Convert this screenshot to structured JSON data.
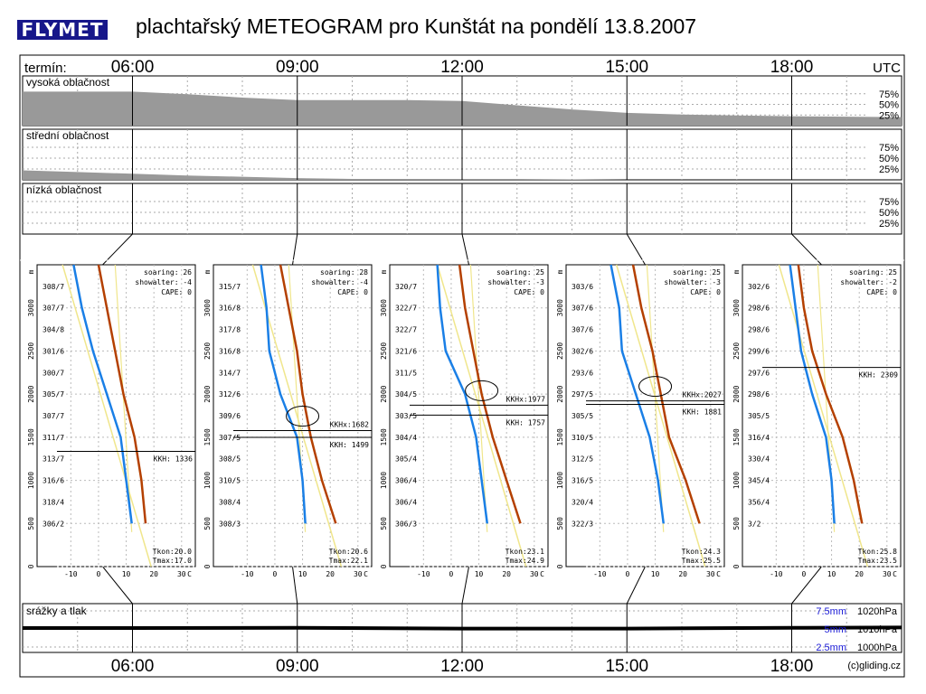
{
  "header": {
    "logo_text": "FLYMET",
    "title": "plachtařský METEOGRAM pro Kunštát na pondělí 13.8.2007"
  },
  "time_axis": {
    "label": "termín:",
    "unit": "UTC",
    "ticks": [
      "06:00",
      "09:00",
      "12:00",
      "15:00",
      "18:00"
    ]
  },
  "cloud_panels": [
    {
      "label": "vysoká oblačnost",
      "percent_ticks": [
        "75%",
        "50%",
        "25%"
      ]
    },
    {
      "label": "střední oblačnost",
      "percent_ticks": [
        "75%",
        "50%",
        "25%"
      ]
    },
    {
      "label": "nízká oblačnost",
      "percent_ticks": [
        "75%",
        "50%",
        "25%"
      ]
    }
  ],
  "sounding_axis": {
    "x_ticks": [
      "-10",
      "0",
      "10",
      "20",
      "30"
    ],
    "x_unit": "C",
    "y_ticks": [
      "0",
      "500",
      "1000",
      "1500",
      "2000",
      "2500",
      "3000"
    ],
    "y_unit": "m"
  },
  "soundings": [
    {
      "time": "06:00",
      "soaring": "soaring: 26",
      "showalter": "showalter: -4",
      "cape": "CAPE: 0",
      "wind_labels": [
        "308/7",
        "307/7",
        "304/8",
        "301/6",
        "300/7",
        "305/7",
        "307/7",
        "311/7",
        "313/7",
        "316/6",
        "318/4",
        "306/2"
      ],
      "kkh": [
        "KKH: 1336"
      ],
      "tkon": "Tkon:20.0",
      "tmax": "Tmax:17.0"
    },
    {
      "time": "09:00",
      "soaring": "soaring: 28",
      "showalter": "showalter: -4",
      "cape": "CAPE: 0",
      "wind_labels": [
        "315/7",
        "316/8",
        "317/8",
        "316/8",
        "314/7",
        "312/6",
        "309/6",
        "307/5",
        "308/5",
        "310/5",
        "308/4",
        "308/3"
      ],
      "kkh": [
        "KKHx:1682",
        "KKH: 1499"
      ],
      "tkon": "Tkon:20.6",
      "tmax": "Tmax:22.1"
    },
    {
      "time": "12:00",
      "soaring": "soaring: 25",
      "showalter": "showalter: -3",
      "cape": "CAPE: 0",
      "wind_labels": [
        "320/7",
        "322/7",
        "322/7",
        "321/6",
        "311/5",
        "304/5",
        "303/5",
        "304/4",
        "305/4",
        "306/4",
        "306/4",
        "306/3"
      ],
      "kkh": [
        "KKHx:1977",
        "KKH: 1757"
      ],
      "tkon": "Tkon:23.1",
      "tmax": "Tmax:24.9"
    },
    {
      "time": "15:00",
      "soaring": "soaring: 25",
      "showalter": "showalter: -3",
      "cape": "CAPE: 0",
      "wind_labels": [
        "303/6",
        "307/6",
        "307/6",
        "302/6",
        "293/6",
        "297/5",
        "305/5",
        "310/5",
        "312/5",
        "316/5",
        "320/4",
        "322/3"
      ],
      "kkh": [
        "KKHx:2027",
        "KKH: 1881"
      ],
      "tkon": "Tkon:24.3",
      "tmax": "Tmax:25.5"
    },
    {
      "time": "18:00",
      "soaring": "soaring: 25",
      "showalter": "showalter: -2",
      "cape": "CAPE: 0",
      "wind_labels": [
        "302/6",
        "298/6",
        "298/6",
        "299/6",
        "297/6",
        "298/6",
        "305/5",
        "316/4",
        "330/4",
        "345/4",
        "356/4",
        "3/2"
      ],
      "kkh": [
        "KKH: 2309"
      ],
      "tkon": "Tkon:25.8",
      "tmax": "Tmax:23.5"
    }
  ],
  "precip_panel": {
    "label": "srážky a tlak",
    "precip_ticks": [
      "7.5mm",
      "5mm",
      "2.5mm"
    ],
    "pressure_ticks": [
      "1020hPa",
      "1010hPa",
      "1000hPa"
    ],
    "precip_color": "#1a1ad6"
  },
  "footer": {
    "credit": "(c)gliding.cz"
  },
  "colors": {
    "cloud_fill": "#999999",
    "dewpoint": "#1a7fe6",
    "temperature": "#b44000",
    "adiabat": "#f0e68c",
    "logo_bg": "#17178a"
  },
  "chart_data": [
    {
      "type": "area",
      "title": "vysoká oblačnost",
      "x": [
        "04:00",
        "06:00",
        "07:00",
        "08:00",
        "09:00",
        "10:00",
        "11:00",
        "12:00",
        "13:00",
        "14:00",
        "15:00",
        "16:00",
        "17:00",
        "18:00",
        "20:00"
      ],
      "values": [
        80,
        80,
        74,
        66,
        60,
        60,
        60,
        58,
        48,
        38,
        30,
        26,
        24,
        22,
        20
      ],
      "ylim": [
        0,
        100
      ]
    },
    {
      "type": "area",
      "title": "střední oblačnost",
      "x": [
        "04:00",
        "05:00",
        "06:00",
        "07:00",
        "08:00",
        "09:00",
        "10:00",
        "11:00",
        "12:00",
        "13:00",
        "14:00",
        "15:00",
        "20:00"
      ],
      "values": [
        22,
        18,
        14,
        10,
        7,
        4,
        2,
        2,
        2,
        2,
        1,
        0,
        0
      ],
      "ylim": [
        0,
        100
      ]
    },
    {
      "type": "area",
      "title": "nízká oblačnost",
      "x": [
        "04:00",
        "20:00"
      ],
      "values": [
        0,
        0
      ],
      "ylim": [
        0,
        100
      ]
    },
    {
      "type": "line",
      "title": "srážky a tlak",
      "x": [
        "04:00",
        "06:00",
        "09:00",
        "12:00",
        "15:00",
        "18:00",
        "20:00"
      ],
      "series": [
        {
          "values": [
            1010.5,
            1010.5,
            1010.6,
            1010.2,
            1010.2,
            1010.6,
            1010.8
          ]
        }
      ],
      "ylim": [
        1000,
        1020
      ]
    }
  ]
}
